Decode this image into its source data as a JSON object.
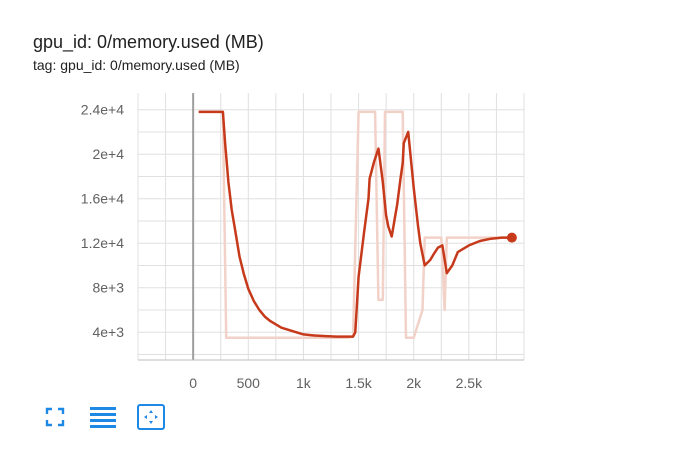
{
  "header": {
    "title": "gpu_id: 0/memory.used (MB)",
    "subtitle": "tag: gpu_id: 0/memory.used (MB)"
  },
  "toolbar": {
    "buttons": [
      {
        "icon": "fullscreen-icon"
      },
      {
        "icon": "toggle-log-scale-icon"
      },
      {
        "icon": "fit-domain-icon"
      }
    ]
  },
  "colors": {
    "line": "#c6391a",
    "raw_line": "#f2d2c8",
    "grid": "#e0e0e0",
    "zero_axis": "#9e9e9e",
    "icon": "#1e88e5"
  },
  "chart_data": {
    "type": "line",
    "title": "gpu_id: 0/memory.used (MB)",
    "xlim": [
      -500,
      3000
    ],
    "ylim": [
      1500,
      25500
    ],
    "x_ticks": [
      0,
      500,
      1000,
      1500,
      2000,
      2500
    ],
    "x_tick_labels": [
      "0",
      "500",
      "1k",
      "1.5k",
      "2k",
      "2.5k"
    ],
    "y_ticks": [
      4000,
      8000,
      12000,
      16000,
      20000,
      24000
    ],
    "y_tick_labels": [
      "4e+3",
      "8e+3",
      "1.2e+4",
      "1.6e+4",
      "2e+4",
      "2.4e+4"
    ],
    "grid": true,
    "series": [
      {
        "role": "raw",
        "x": [
          50,
          270,
          300,
          1400,
          1450,
          1500,
          1650,
          1680,
          1720,
          1740,
          1900,
          1930,
          2000,
          2080,
          2100,
          2200,
          2250,
          2280,
          2300,
          2350,
          2900
        ],
        "y": [
          23800,
          23800,
          3500,
          3500,
          3600,
          23800,
          23800,
          6900,
          6900,
          23800,
          23800,
          3500,
          3500,
          6000,
          12500,
          12500,
          12500,
          6000,
          12500,
          12500,
          12500
        ]
      },
      {
        "role": "smoothed",
        "x": [
          50,
          250,
          270,
          290,
          320,
          350,
          380,
          420,
          460,
          500,
          550,
          600,
          650,
          700,
          800,
          900,
          1000,
          1100,
          1200,
          1300,
          1400,
          1450,
          1470,
          1500,
          1550,
          1590,
          1600,
          1640,
          1680,
          1690,
          1720,
          1750,
          1770,
          1800,
          1850,
          1880,
          1900,
          1910,
          1950,
          2000,
          2040,
          2060,
          2100,
          2150,
          2180,
          2220,
          2260,
          2300,
          2350,
          2400,
          2500,
          2600,
          2700,
          2800,
          2890
        ],
        "y": [
          23800,
          23800,
          23800,
          21000,
          17500,
          15000,
          13200,
          10800,
          9200,
          7900,
          6800,
          6000,
          5400,
          5000,
          4400,
          4100,
          3800,
          3700,
          3650,
          3600,
          3600,
          3600,
          4000,
          9000,
          13000,
          16000,
          17800,
          19300,
          20500,
          19800,
          17500,
          14500,
          13500,
          12600,
          15500,
          17800,
          19200,
          21000,
          22000,
          17000,
          13500,
          12000,
          10000,
          10500,
          11000,
          11600,
          11800,
          9300,
          10000,
          11200,
          11800,
          12200,
          12400,
          12500,
          12500
        ]
      }
    ]
  }
}
